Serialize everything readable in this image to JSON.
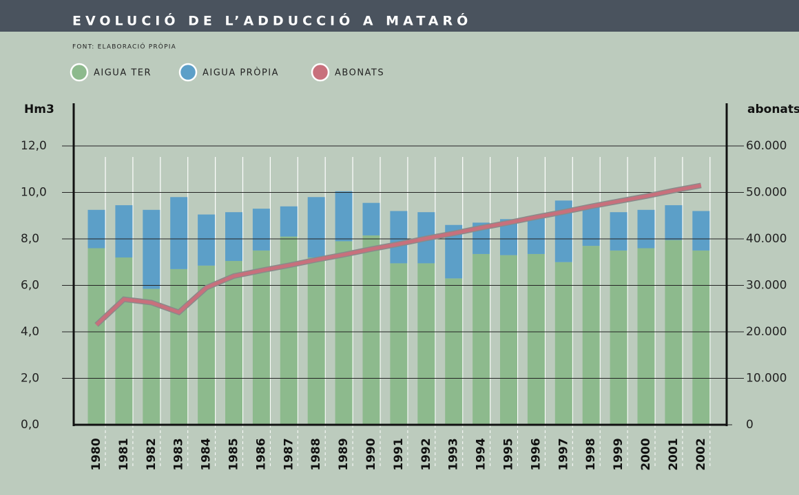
{
  "chart_data": {
    "type": "bar",
    "stacked": true,
    "title": "EVOLUCIÓ DE L’ADDUCCIÓ A MATARÓ",
    "subtitle": "FONT: ELABORACIÓ PRÒPIA",
    "y_label": "Hm3",
    "y2_label": "abonats",
    "categories": [
      "1980",
      "1981",
      "1982",
      "1983",
      "1984",
      "1985",
      "1986",
      "1987",
      "1988",
      "1989",
      "1990",
      "1991",
      "1992",
      "1993",
      "1994",
      "1995",
      "1996",
      "1997",
      "1998",
      "1999",
      "2000",
      "2001",
      "2002"
    ],
    "series": [
      {
        "name": "AIGUA TER",
        "color": "#8dba8d",
        "type": "bar",
        "values": [
          7.6,
          7.2,
          5.85,
          6.7,
          6.85,
          7.05,
          7.5,
          8.1,
          7.2,
          7.9,
          8.15,
          6.95,
          6.95,
          6.3,
          7.35,
          7.3,
          7.35,
          7.0,
          7.7,
          7.5,
          7.6,
          7.95,
          7.5
        ]
      },
      {
        "name": "AIGUA PRÒPIA",
        "color": "#5c9fc8",
        "type": "bar",
        "values": [
          1.65,
          2.25,
          3.4,
          3.1,
          2.2,
          2.1,
          1.8,
          1.3,
          2.6,
          2.15,
          1.4,
          2.25,
          2.2,
          2.3,
          1.35,
          1.55,
          1.55,
          2.65,
          1.7,
          1.65,
          1.65,
          1.5,
          1.7
        ]
      },
      {
        "name": "ABONATS",
        "color": "#c8707c",
        "type": "line",
        "axis": "y2",
        "values": [
          21500,
          27000,
          26300,
          24200,
          29500,
          32000,
          33200,
          34300,
          35500,
          36600,
          37800,
          38900,
          40100,
          41200,
          42400,
          43500,
          44700,
          45800,
          47000,
          48100,
          49200,
          50400,
          51500
        ]
      }
    ],
    "ylim": [
      0,
      12
    ],
    "yticks": [
      {
        "value": 0,
        "label": "0,0"
      },
      {
        "value": 2,
        "label": "2,0"
      },
      {
        "value": 4,
        "label": "4,0"
      },
      {
        "value": 6,
        "label": "6,0"
      },
      {
        "value": 8,
        "label": "8,0"
      },
      {
        "value": 10,
        "label": "10,0"
      },
      {
        "value": 12,
        "label": "12,0"
      }
    ],
    "y2lim": [
      0,
      60000
    ],
    "y2ticks": [
      0,
      {
        "value": 10000,
        "label": "10.000"
      },
      {
        "value": 20000,
        "label": "20.000"
      },
      {
        "value": 30000,
        "label": "30.000"
      },
      {
        "value": 40000,
        "label": "40.000"
      },
      {
        "value": 50000,
        "label": "50.000"
      },
      {
        "value": 60000,
        "label": "60.000"
      }
    ],
    "grid": true,
    "legend": "top"
  }
}
